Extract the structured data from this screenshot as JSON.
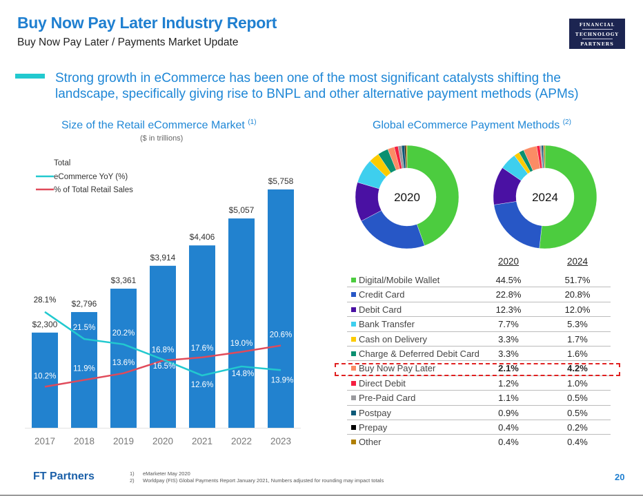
{
  "header": {
    "title": "Buy Now Pay Later Industry Report",
    "subtitle": "Buy Now Pay Later / Payments Market Update",
    "logo_lines": [
      "FINANCIAL",
      "TECHNOLOGY",
      "PARTNERS"
    ]
  },
  "headline": "Strong growth in eCommerce has been one of the most significant catalysts shifting the landscape, specifically giving rise to BNPL and other alternative payment methods (APMs)",
  "colors": {
    "brand_blue": "#1f7fd0",
    "bar_blue": "#2282cf",
    "yoy_line": "#22c9cf",
    "retail_line": "#e04a5a",
    "highlight_dash": "#e02020",
    "logo_bg": "#1c2551"
  },
  "chart_data": [
    {
      "type": "bar",
      "title": "Size of the Retail eCommerce Market",
      "title_footnote": "(1)",
      "subtitle": "($ in trillions)",
      "categories": [
        "2017",
        "2018",
        "2019",
        "2020",
        "2021",
        "2022",
        "2023"
      ],
      "legend": {
        "placement": "top-left",
        "entries": [
          {
            "label": "Total",
            "marker": "none"
          },
          {
            "label": "eCommerce YoY (%)",
            "marker": "line",
            "color": "#22c9cf"
          },
          {
            "label": "% of Total Retail Sales",
            "marker": "line",
            "color": "#e04a5a"
          }
        ]
      },
      "series": [
        {
          "name": "Total",
          "kind": "bar",
          "color": "#2282cf",
          "values": [
            2300,
            2796,
            3361,
            3914,
            4406,
            5057,
            5758
          ],
          "labels": [
            "$2,300",
            "$2,796",
            "$3,361",
            "$3,914",
            "$4,406",
            "$5,057",
            "$5,758"
          ]
        },
        {
          "name": "eCommerce YoY (%)",
          "kind": "line",
          "color": "#22c9cf",
          "values": [
            28.1,
            21.5,
            20.2,
            16.5,
            12.6,
            14.8,
            13.9
          ],
          "labels": [
            "28.1%",
            "21.5%",
            "20.2%",
            "16.5%",
            "12.6%",
            "14.8%",
            "13.9%"
          ]
        },
        {
          "name": "% of Total Retail Sales",
          "kind": "line",
          "color": "#e04a5a",
          "values": [
            10.2,
            11.9,
            13.6,
            16.8,
            17.6,
            19.0,
            20.6
          ],
          "labels": [
            "10.2%",
            "11.9%",
            "13.6%",
            "16.8%",
            "17.6%",
            "19.0%",
            "20.6%"
          ]
        }
      ],
      "ylim": [
        0,
        5758
      ],
      "grid": false,
      "xlabel": "",
      "ylabel": ""
    },
    {
      "type": "pie",
      "variant": "donut",
      "title": "Global eCommerce Payment Methods",
      "title_footnote": "(2)",
      "column_headers": [
        "2020",
        "2024"
      ],
      "categories": [
        "Digital/Mobile Wallet",
        "Credit Card",
        "Debit Card",
        "Bank Transfer",
        "Cash on Delivery",
        "Charge & Deferred Debit Card",
        "Buy Now Pay Later",
        "Direct Debit",
        "Pre-Paid Card",
        "Postpay",
        "Prepay",
        "Other"
      ],
      "colors": [
        "#4ccc3f",
        "#2757c6",
        "#4a11a3",
        "#3ecfee",
        "#fccb00",
        "#0b9070",
        "#fb8c65",
        "#f51f40",
        "#9a9a9e",
        "#0c5978",
        "#000000",
        "#b07f00"
      ],
      "series": [
        {
          "name": "2020",
          "values": [
            44.5,
            22.8,
            12.3,
            7.7,
            3.3,
            3.3,
            2.1,
            1.2,
            1.1,
            0.9,
            0.4,
            0.4
          ],
          "labels": [
            "44.5%",
            "22.8%",
            "12.3%",
            "7.7%",
            "3.3%",
            "3.3%",
            "2.1%",
            "1.2%",
            "1.1%",
            "0.9%",
            "0.4%",
            "0.4%"
          ]
        },
        {
          "name": "2024",
          "values": [
            51.7,
            20.8,
            12.0,
            5.3,
            1.7,
            1.6,
            4.2,
            1.0,
            0.5,
            0.5,
            0.2,
            0.4
          ],
          "labels": [
            "51.7%",
            "20.8%",
            "12.0%",
            "5.3%",
            "1.7%",
            "1.6%",
            "4.2%",
            "1.0%",
            "0.5%",
            "0.5%",
            "0.2%",
            "0.4%"
          ]
        }
      ],
      "highlighted_category": "Buy Now Pay Later",
      "legend": {
        "placement": "bottom",
        "style": "table"
      }
    }
  ],
  "footer": {
    "brand": "FT Partners",
    "footnotes": [
      {
        "num": "1)",
        "text": "eMarketer May 2020"
      },
      {
        "num": "2)",
        "text": "Worldpay (FIS) Global Payments Report January 2021, Numbers adjusted for rounding may impact totals"
      }
    ],
    "page_number": "20"
  }
}
